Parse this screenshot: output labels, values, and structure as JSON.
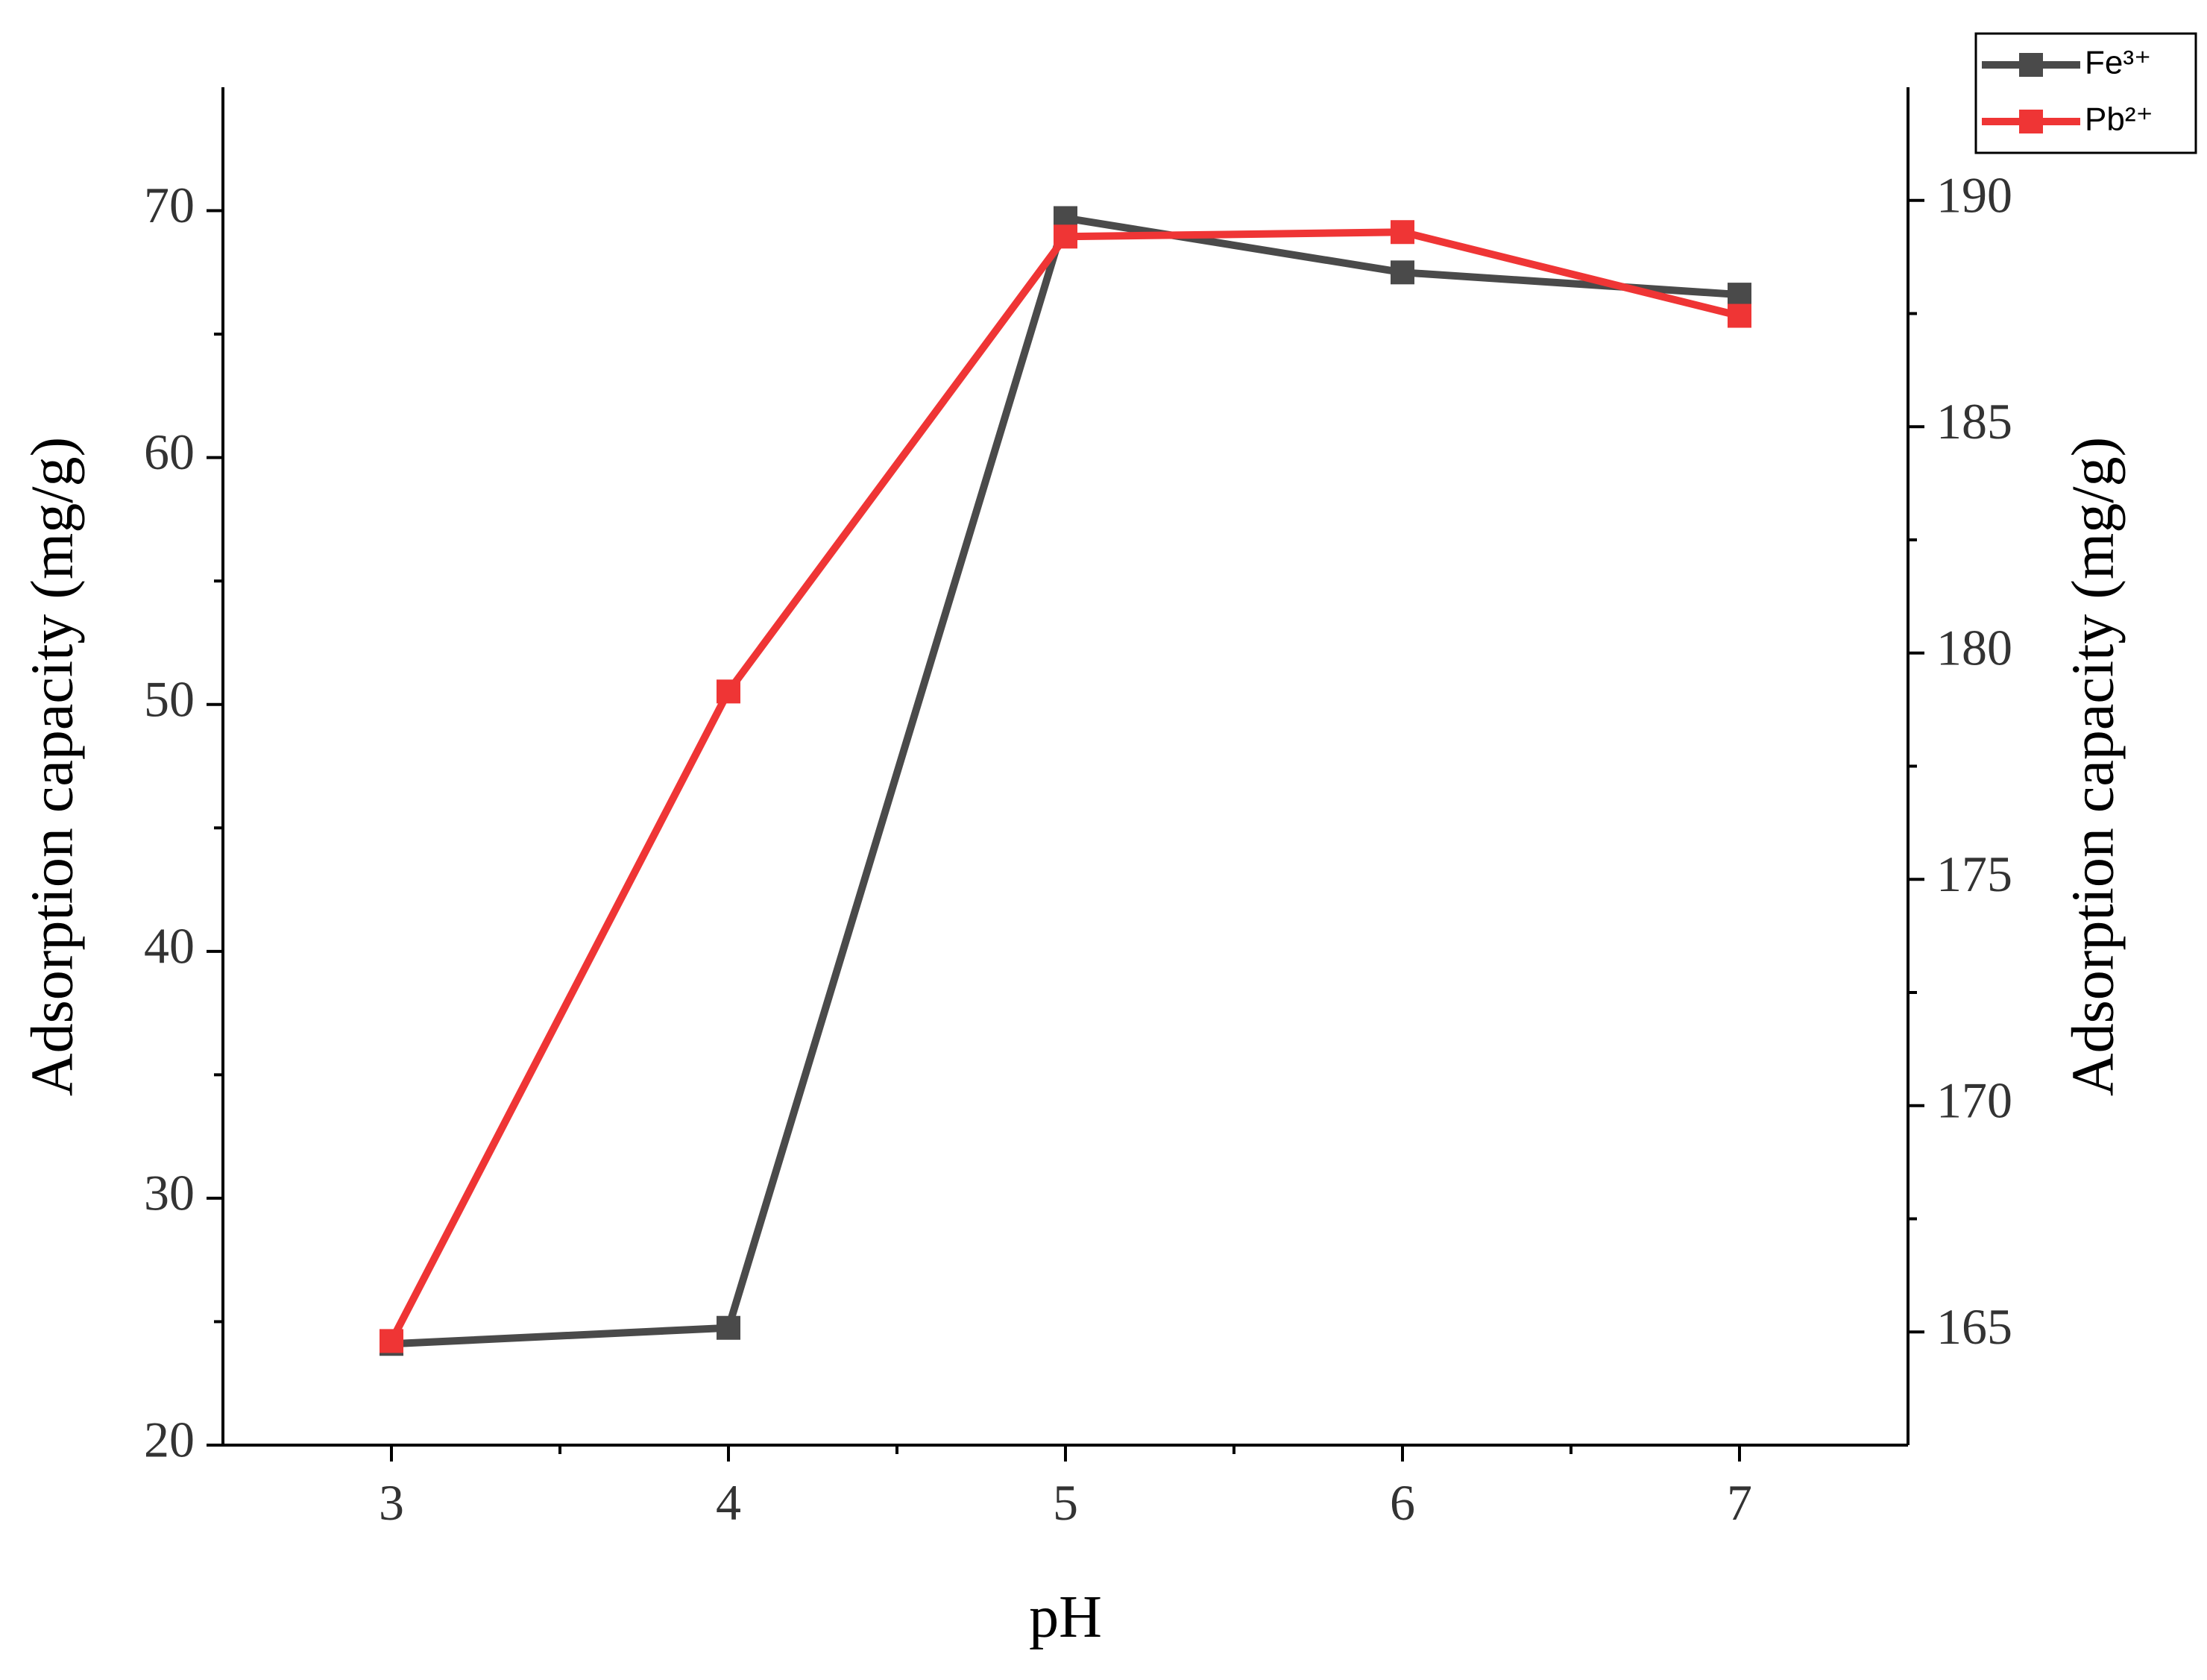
{
  "chart_data": {
    "type": "line",
    "x_label": "pH",
    "y_label": "Adsorption capacity (mg/g)",
    "y2_label": "Adsorption capacity (mg/g)",
    "x": [
      3,
      4,
      5,
      6,
      7
    ],
    "series": [
      {
        "name": "Fe³⁺",
        "color": "#4a4a4a",
        "values": [
          24.1,
          24.75,
          69.7,
          67.5,
          66.6
        ]
      },
      {
        "name": "Pb²⁺",
        "color": "#ef3535",
        "axis": "y2",
        "values": [
          164.8,
          179.15,
          189.2,
          189.3,
          187.45
        ]
      }
    ],
    "xlim": [
      2.5,
      7.5
    ],
    "xticks": [
      3,
      4,
      5,
      6,
      7
    ],
    "ylim": [
      20,
      75
    ],
    "yticks": [
      20,
      30,
      40,
      50,
      60,
      70
    ],
    "y2lim": [
      162.5,
      192.5
    ],
    "y2ticks": [
      165,
      170,
      175,
      180,
      185,
      190
    ],
    "minor_ticks": true,
    "legend": "top-right"
  }
}
